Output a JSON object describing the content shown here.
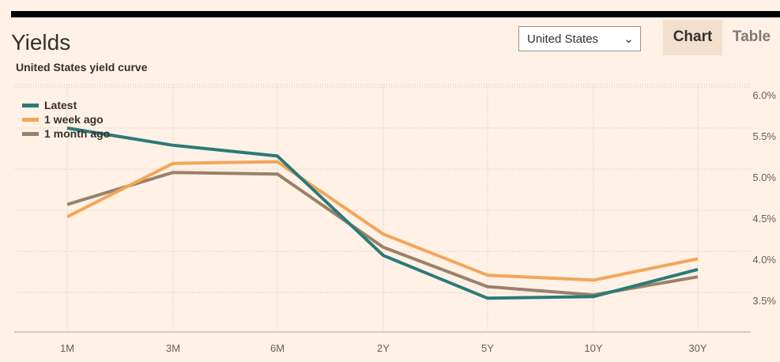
{
  "header": {
    "title": "Yields"
  },
  "selector": {
    "value": "United States",
    "icon": "chevron-down-icon"
  },
  "tabs": [
    {
      "label": "Chart",
      "active": true
    },
    {
      "label": "Table",
      "active": false
    }
  ],
  "colors": {
    "latest": "#2b7a78",
    "week": "#f2a65a",
    "month": "#9a8169",
    "grid": "#cfc7bf",
    "axis": "#d9c9b8"
  },
  "chart_data": {
    "type": "line",
    "title": "United States yield curve",
    "categories": [
      "1M",
      "3M",
      "6M",
      "2Y",
      "5Y",
      "10Y",
      "30Y"
    ],
    "y_ticks": [
      "6.0%",
      "5.5%",
      "5.0%",
      "4.5%",
      "4.0%",
      "3.5%"
    ],
    "ylim": [
      3.0,
      6.1
    ],
    "grid": true,
    "legend_position": "top-left",
    "series": [
      {
        "name": "Latest",
        "values": [
          5.5,
          5.29,
          5.16,
          3.95,
          3.43,
          3.45,
          3.78
        ]
      },
      {
        "name": "1 week ago",
        "values": [
          4.42,
          5.07,
          5.09,
          4.21,
          3.71,
          3.65,
          3.91
        ]
      },
      {
        "name": "1 month ago",
        "values": [
          4.57,
          4.96,
          4.94,
          4.05,
          3.57,
          3.47,
          3.69
        ]
      }
    ]
  }
}
